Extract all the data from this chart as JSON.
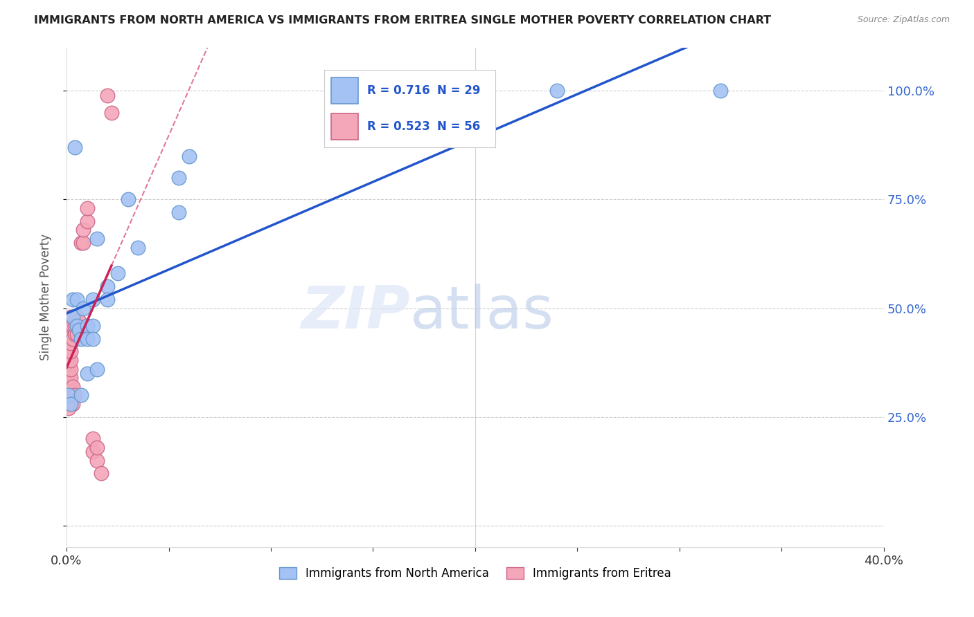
{
  "title": "IMMIGRANTS FROM NORTH AMERICA VS IMMIGRANTS FROM ERITREA SINGLE MOTHER POVERTY CORRELATION CHART",
  "source": "Source: ZipAtlas.com",
  "ylabel": "Single Mother Poverty",
  "legend_blue_label": "Immigrants from North America",
  "legend_pink_label": "Immigrants from Eritrea",
  "blue_color": "#a4c2f4",
  "pink_color": "#f4a7b9",
  "blue_edge": "#6699cc",
  "pink_edge": "#cc6688",
  "trend_blue": "#2255cc",
  "trend_pink": "#cc2255",
  "watermark": "ZIPatlas",
  "xlim": [
    0.0,
    0.4
  ],
  "ylim": [
    -0.05,
    1.1
  ],
  "blue_points": [
    [
      0.001,
      0.3
    ],
    [
      0.002,
      0.28
    ],
    [
      0.003,
      0.52
    ],
    [
      0.003,
      0.48
    ],
    [
      0.004,
      0.87
    ],
    [
      0.005,
      0.52
    ],
    [
      0.005,
      0.46
    ],
    [
      0.006,
      0.45
    ],
    [
      0.007,
      0.43
    ],
    [
      0.007,
      0.3
    ],
    [
      0.008,
      0.5
    ],
    [
      0.01,
      0.46
    ],
    [
      0.01,
      0.43
    ],
    [
      0.01,
      0.35
    ],
    [
      0.013,
      0.52
    ],
    [
      0.013,
      0.46
    ],
    [
      0.013,
      0.43
    ],
    [
      0.015,
      0.36
    ],
    [
      0.015,
      0.66
    ],
    [
      0.02,
      0.55
    ],
    [
      0.02,
      0.52
    ],
    [
      0.025,
      0.58
    ],
    [
      0.03,
      0.75
    ],
    [
      0.035,
      0.64
    ],
    [
      0.055,
      0.72
    ],
    [
      0.055,
      0.8
    ],
    [
      0.06,
      0.85
    ],
    [
      0.24,
      1.0
    ],
    [
      0.32,
      1.0
    ]
  ],
  "pink_points": [
    [
      0.001,
      0.28
    ],
    [
      0.001,
      0.3
    ],
    [
      0.001,
      0.31
    ],
    [
      0.001,
      0.32
    ],
    [
      0.001,
      0.33
    ],
    [
      0.001,
      0.34
    ],
    [
      0.001,
      0.35
    ],
    [
      0.001,
      0.36
    ],
    [
      0.001,
      0.37
    ],
    [
      0.001,
      0.38
    ],
    [
      0.001,
      0.39
    ],
    [
      0.001,
      0.4
    ],
    [
      0.001,
      0.41
    ],
    [
      0.001,
      0.42
    ],
    [
      0.001,
      0.43
    ],
    [
      0.001,
      0.44
    ],
    [
      0.001,
      0.45
    ],
    [
      0.001,
      0.46
    ],
    [
      0.002,
      0.28
    ],
    [
      0.002,
      0.3
    ],
    [
      0.002,
      0.32
    ],
    [
      0.002,
      0.34
    ],
    [
      0.002,
      0.36
    ],
    [
      0.002,
      0.38
    ],
    [
      0.002,
      0.4
    ],
    [
      0.002,
      0.42
    ],
    [
      0.002,
      0.44
    ],
    [
      0.002,
      0.46
    ],
    [
      0.002,
      0.48
    ],
    [
      0.003,
      0.28
    ],
    [
      0.003,
      0.3
    ],
    [
      0.003,
      0.32
    ],
    [
      0.003,
      0.43
    ],
    [
      0.003,
      0.46
    ],
    [
      0.004,
      0.3
    ],
    [
      0.004,
      0.44
    ],
    [
      0.004,
      0.46
    ],
    [
      0.005,
      0.44
    ],
    [
      0.005,
      0.46
    ],
    [
      0.005,
      0.48
    ],
    [
      0.006,
      0.46
    ],
    [
      0.006,
      0.47
    ],
    [
      0.007,
      0.44
    ],
    [
      0.007,
      0.65
    ],
    [
      0.008,
      0.65
    ],
    [
      0.008,
      0.68
    ],
    [
      0.01,
      0.7
    ],
    [
      0.01,
      0.73
    ],
    [
      0.013,
      0.17
    ],
    [
      0.013,
      0.2
    ],
    [
      0.015,
      0.15
    ],
    [
      0.015,
      0.18
    ],
    [
      0.017,
      0.12
    ],
    [
      0.02,
      0.99
    ],
    [
      0.022,
      0.95
    ],
    [
      0.001,
      0.27
    ]
  ]
}
